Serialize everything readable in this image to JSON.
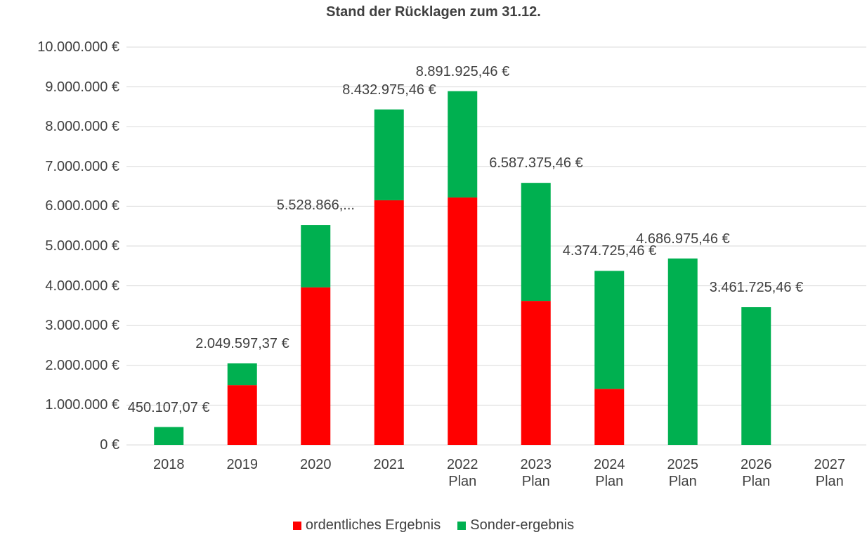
{
  "chart_data": {
    "type": "stacked_bar",
    "title": "Stand der Rücklagen zum 31.12.",
    "categories": [
      "2018",
      "2019",
      "2020",
      "2021",
      "2022 Plan",
      "2023 Plan",
      "2024 Plan",
      "2025 Plan",
      "2026 Plan",
      "2027 Plan"
    ],
    "series": [
      {
        "name": "ordentliches Ergebnis",
        "color": "#ff0000",
        "values": [
          0,
          1500000,
          3960000,
          6150000,
          6220000,
          3620000,
          1410000,
          0,
          0,
          null
        ]
      },
      {
        "name": "Sonder-ergebnis",
        "color": "#00b050",
        "values": [
          450107.07,
          549597.37,
          1568866,
          2282975.46,
          2671925.46,
          2967375.46,
          2964725.46,
          4686975.46,
          3461725.46,
          null
        ]
      }
    ],
    "totals": [
      450107.07,
      2049597.37,
      5528866,
      8432975.46,
      8891925.46,
      6587375.46,
      4374725.46,
      4686975.46,
      3461725.46,
      null
    ],
    "total_labels": [
      "450.107,07 €",
      "2.049.597,37 €",
      "5.528.866,...",
      "8.432.975,46 €",
      "8.891.925,46 €",
      "6.587.375,46 €",
      "4.374.725,46 €",
      "4.686.975,46 €",
      "3.461.725,46 €",
      null
    ],
    "ylim": [
      0,
      10000000
    ],
    "yticks": [
      {
        "value": 0,
        "label": "0 €"
      },
      {
        "value": 1000000,
        "label": "1.000.000 €"
      },
      {
        "value": 2000000,
        "label": "2.000.000 €"
      },
      {
        "value": 3000000,
        "label": "3.000.000 €"
      },
      {
        "value": 4000000,
        "label": "4.000.000 €"
      },
      {
        "value": 5000000,
        "label": "5.000.000 €"
      },
      {
        "value": 6000000,
        "label": "6.000.000 €"
      },
      {
        "value": 7000000,
        "label": "7.000.000 €"
      },
      {
        "value": 8000000,
        "label": "8.000.000 €"
      },
      {
        "value": 9000000,
        "label": "9.000.000 €"
      },
      {
        "value": 10000000,
        "label": "10.000.000 €"
      }
    ],
    "grid": true,
    "legend": "bottom"
  }
}
